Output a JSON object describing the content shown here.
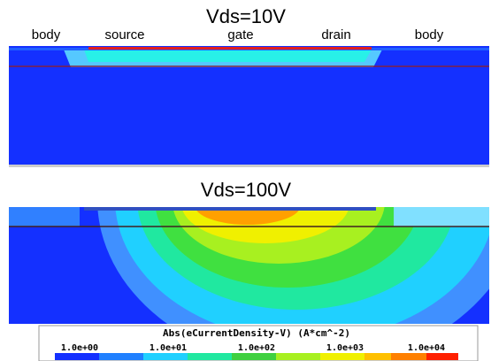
{
  "panels": [
    {
      "title": "Vds=10V",
      "labels": [
        "body",
        "source",
        "gate",
        "drain",
        "body"
      ]
    },
    {
      "title": "Vds=100V"
    }
  ],
  "colorbar": {
    "title": "Abs(eCurrentDensity-V) (A*cm^-2)",
    "tick_labels": [
      "1.0e+00",
      "1.0e+01",
      "1.0e+02",
      "1.0e+03",
      "1.0e+04"
    ]
  }
}
